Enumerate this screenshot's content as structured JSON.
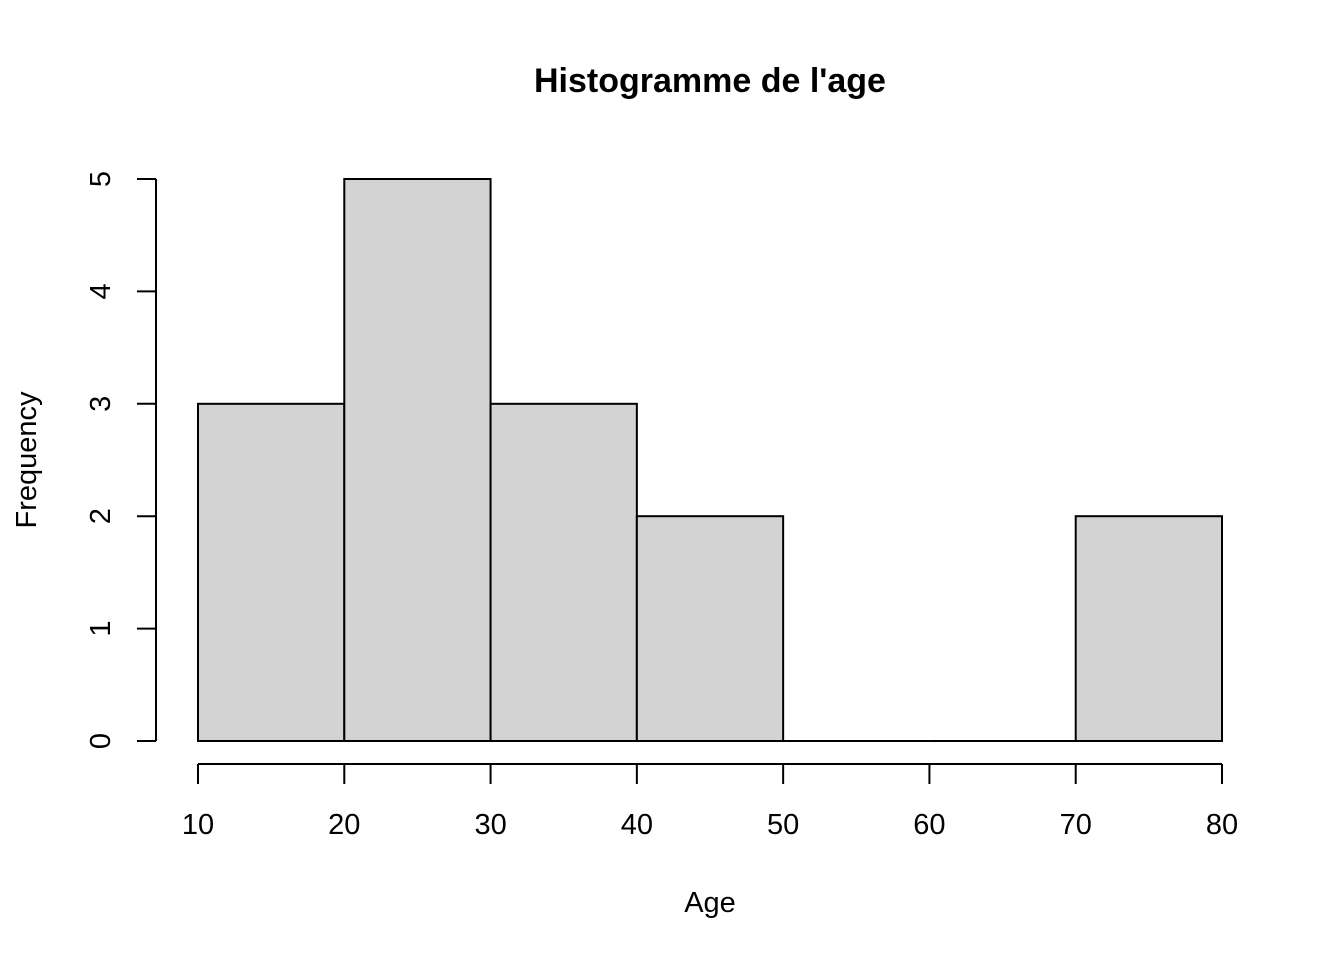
{
  "chart_data": {
    "type": "bar",
    "subtype": "histogram",
    "title": "Histogramme de l'age",
    "xlabel": "Age",
    "ylabel": "Frequency",
    "bins": [
      {
        "from": 10,
        "to": 20,
        "count": 3
      },
      {
        "from": 20,
        "to": 30,
        "count": 5
      },
      {
        "from": 30,
        "to": 40,
        "count": 3
      },
      {
        "from": 40,
        "to": 50,
        "count": 2
      },
      {
        "from": 50,
        "to": 60,
        "count": 0
      },
      {
        "from": 60,
        "to": 70,
        "count": 0
      },
      {
        "from": 70,
        "to": 80,
        "count": 2
      }
    ],
    "xlim": [
      10,
      80
    ],
    "ylim": [
      0,
      5
    ],
    "x_ticks": [
      "10",
      "20",
      "30",
      "40",
      "50",
      "60",
      "70",
      "80"
    ],
    "y_ticks": [
      "0",
      "1",
      "2",
      "3",
      "4",
      "5"
    ],
    "grid": false,
    "legend": "none",
    "bar_fill": "#d3d3d3",
    "bar_stroke": "#000000"
  }
}
